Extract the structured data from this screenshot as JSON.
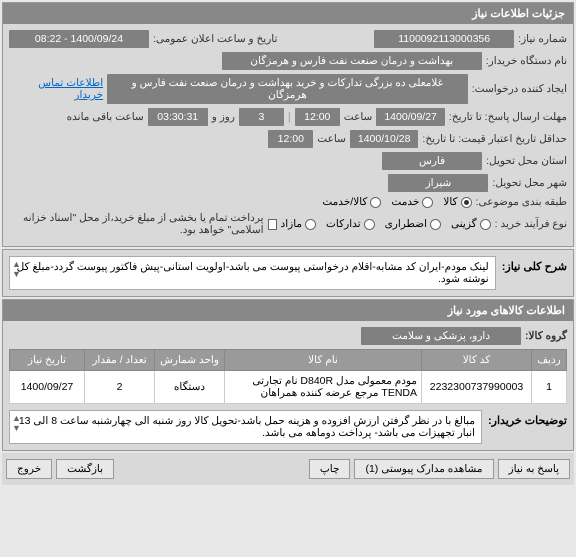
{
  "panel1": {
    "title": "جزئیات اطلاعات نیاز",
    "rows": {
      "reqNo": {
        "label": "شماره نیاز:",
        "value": "1100092113000356"
      },
      "announce": {
        "label": "تاریخ و ساعت اعلان عمومی:",
        "value": "1400/09/24 - 08:22"
      },
      "buyer": {
        "label": "نام دستگاه خریدار:",
        "value": "بهداشت و درمان صنعت نفت فارس و هرمزگان"
      },
      "creator": {
        "label": "ایجاد کننده درخواست:",
        "value": "غلامعلی ده بزرگی تدارکات و خرید بهداشت و درمان صنعت نفت فارس و هرمزگان",
        "link": "اطلاعات تماس خریدار"
      },
      "deadline": {
        "label": "مهلت ارسال پاسخ: تا تاریخ:",
        "date": "1400/09/27",
        "timeLabel": "ساعت",
        "time": "12:00",
        "dayCount": "3",
        "dayLabel": "روز و",
        "countdown": "03:30:31",
        "remainLabel": "ساعت باقی مانده"
      },
      "validity": {
        "label": "حداقل تاریخ اعتبار قیمت: تا تاریخ:",
        "date": "1400/10/28",
        "timeLabel": "ساعت",
        "time": "12:00"
      },
      "province": {
        "label": "استان محل تحویل:",
        "value": "فارس"
      },
      "city": {
        "label": "شهر محل تحویل:",
        "value": "شیراز"
      },
      "category": {
        "label": "طبقه بندی موضوعی:",
        "goods": "کالا",
        "service": "خدمت",
        "both": "کالا/خدمت"
      },
      "buyType": {
        "label": "نوع فرآیند خرید :",
        "t1": "گزینی",
        "t2": "اضطراری",
        "t3": "تدارکات",
        "t4": "مازاد",
        "note": "پرداخت تمام یا بخشی از مبلغ خرید،از محل \"اسناد خزانه اسلامی\" خواهد بود."
      }
    }
  },
  "desc": {
    "label": "شرح کلی نیاز:",
    "text": "لینک مودم-ایران کد مشابه-اقلام درخواستی پیوست می باشد-اولویت استانی-پیش فاکتور پیوست گردد-مبلغ کل نوشته شود."
  },
  "panel2": {
    "title": "اطلاعات کالاهای مورد نیاز",
    "groupLabel": "گروه کالا:",
    "groupValue": "دارو، پزشکی و سلامت",
    "columns": [
      "ردیف",
      "کد کالا",
      "نام کالا",
      "واحد شمارش",
      "تعداد / مقدار",
      "تاریخ نیاز"
    ],
    "rows": [
      {
        "idx": "1",
        "code": "2232300737990003",
        "name": "مودم معمولی مدل D840R نام تجارتی TENDA مرجع عرضه کننده همراهان",
        "unit": "دستگاه",
        "qty": "2",
        "date": "1400/09/27"
      }
    ],
    "buyerNoteLabel": "توضیحات خریدار:",
    "buyerNote": "مبالغ با در نظر گرفتن ارزش افزوده و هزینه حمل باشد-تحویل کالا روز شنبه الی چهارشنبه ساعت 8 الی 13 انبار تجهیزات می باشد- پرداخت دوماهه می باشد."
  },
  "footer": {
    "reply": "پاسخ به نیاز",
    "attach": "مشاهده مدارک پیوستی (1)",
    "print": "چاپ",
    "back": "بازگشت",
    "exit": "خروج"
  }
}
